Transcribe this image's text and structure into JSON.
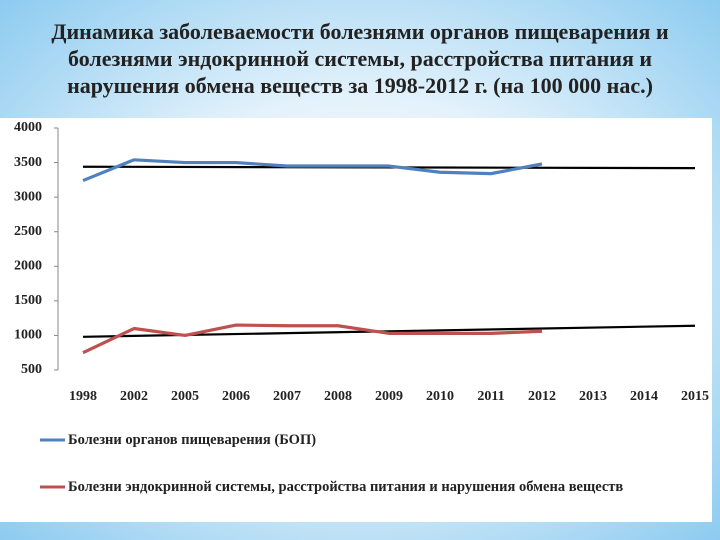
{
  "chart_data": {
    "type": "line",
    "title": "Динамика заболеваемости болезнями органов пищеварения и болезнями эндокринной системы, расстройства питания и нарушения обмена веществ за 1998-2012 г. (на 100 000 нас.)",
    "categories": [
      "1998",
      "2002",
      "2005",
      "2006",
      "2007",
      "2008",
      "2009",
      "2010",
      "2011",
      "2012",
      "2013",
      "2014",
      "2015"
    ],
    "series": [
      {
        "name": "Болезни органов пищеварения (БОП)",
        "color": "#4f81bd",
        "values": [
          3240,
          3540,
          3500,
          3500,
          3450,
          3450,
          3450,
          3360,
          3340,
          3480,
          null,
          null,
          null
        ]
      },
      {
        "name": "Болезни эндокринной системы, расстройства питания и нарушения обмена веществ",
        "color": "#c0504d",
        "values": [
          750,
          1100,
          1000,
          1150,
          1140,
          1140,
          1030,
          1030,
          1030,
          1060,
          null,
          null,
          null
        ]
      }
    ],
    "trendlines": [
      {
        "color": "#000000",
        "values": [
          3440,
          3420
        ]
      },
      {
        "color": "#000000",
        "values": [
          980,
          1140
        ]
      }
    ],
    "ylim": [
      500,
      4000
    ],
    "yticks": [
      500,
      1000,
      1500,
      2000,
      2500,
      3000,
      3500,
      4000
    ],
    "grid": false
  }
}
